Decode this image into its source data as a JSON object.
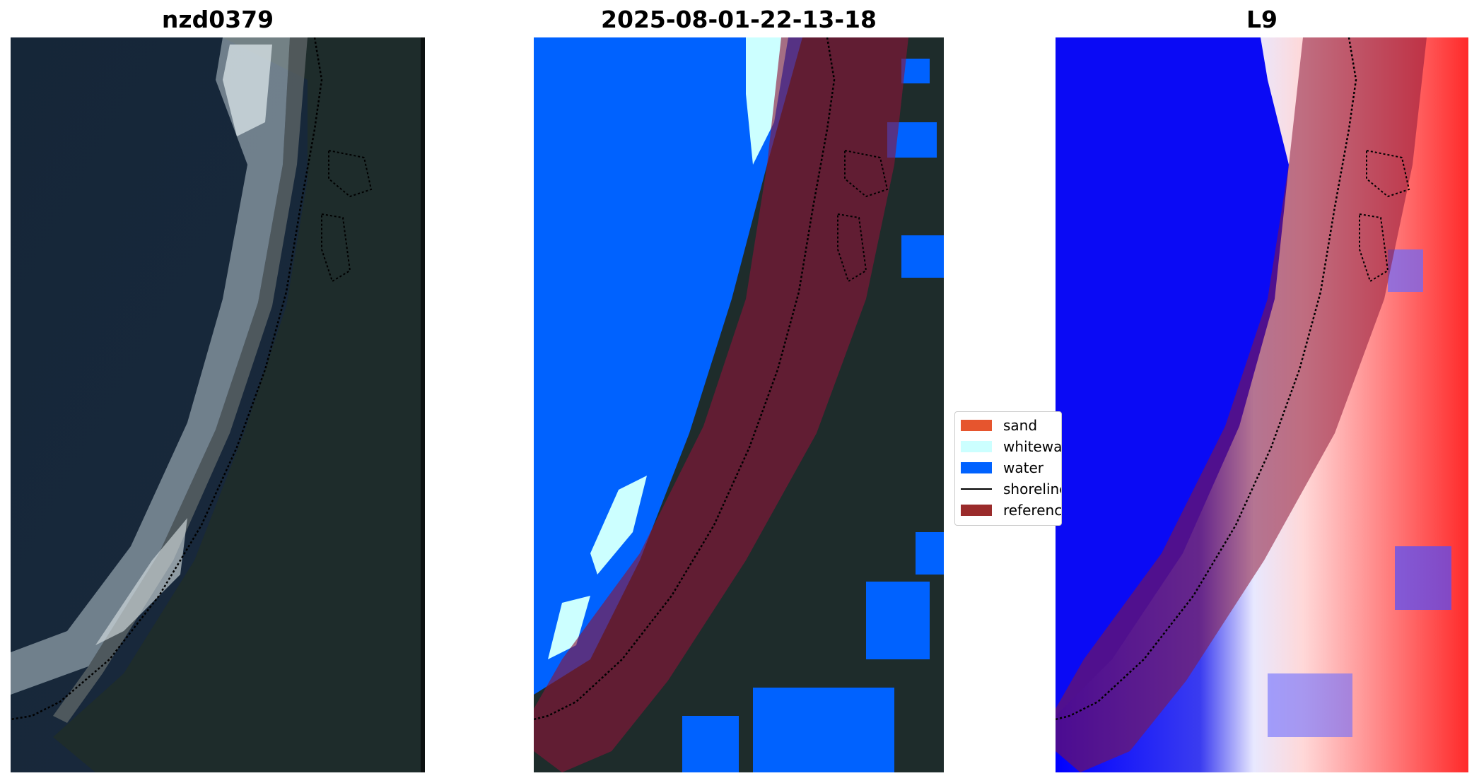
{
  "panels": [
    {
      "title": "nzd0379"
    },
    {
      "title": "2025-08-01-22-13-18"
    },
    {
      "title": "L9"
    }
  ],
  "legend": {
    "items": [
      {
        "label": "sand",
        "color": "#e6552e",
        "kind": "patch"
      },
      {
        "label": "whitewater",
        "color": "#ccffff",
        "kind": "patch"
      },
      {
        "label": "water",
        "color": "#0062ff",
        "kind": "patch"
      },
      {
        "label": "shoreline",
        "color": "#000000",
        "kind": "line"
      },
      {
        "label": "reference",
        "color": "#9a2b2b",
        "kind": "patch"
      }
    ]
  },
  "colors": {
    "ocean_rgb": "#14253a",
    "land_rgb": "#1d2b2a",
    "surf": "#d8e2e6",
    "water_class": "#0062ff",
    "whitewater_class": "#ccffff",
    "reference_buffer": "#8a1538",
    "index_low": "#0000ff",
    "index_high": "#ff0000"
  }
}
